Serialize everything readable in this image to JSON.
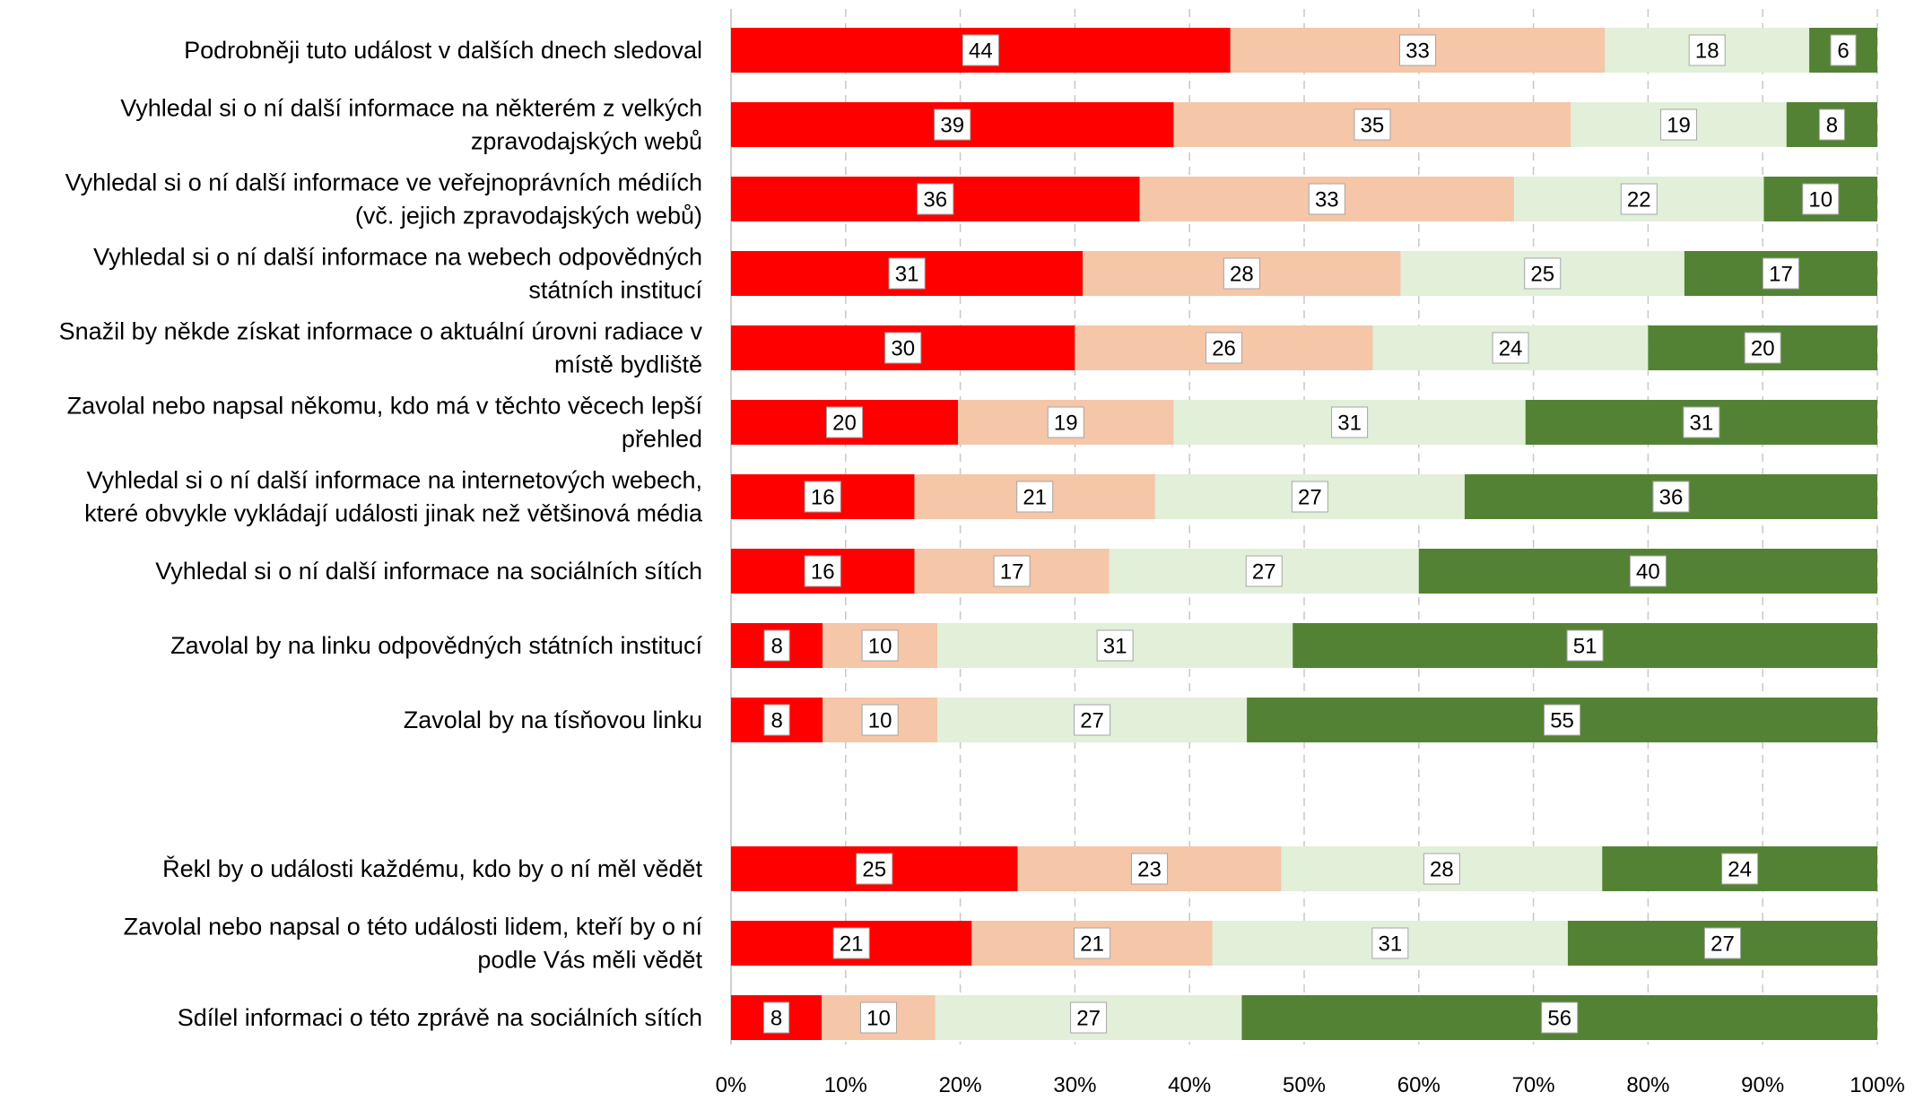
{
  "colors": {
    "series": [
      "#ff0000",
      "#f5c6a8",
      "#e2efd9",
      "#548235"
    ],
    "grid": "#c8c8c8",
    "label_box_border": "#a6a6a6"
  },
  "chart_data": {
    "type": "bar",
    "orientation": "horizontal",
    "stacked": "percent",
    "title": "",
    "xlabel": "",
    "ylabel": "",
    "xlim": [
      0,
      100
    ],
    "x_ticks": [
      "0%",
      "10%",
      "20%",
      "30%",
      "40%",
      "50%",
      "60%",
      "70%",
      "80%",
      "90%",
      "100%"
    ],
    "grid": "vertical dashed",
    "legend": "none",
    "categories": [
      [
        "Podrobněji tuto událost v dalších dnech sledoval"
      ],
      [
        "Vyhledal si o ní další informace na některém z velkých",
        "zpravodajských webů"
      ],
      [
        "Vyhledal si o ní další informace ve veřejnoprávních médiích",
        "(vč. jejich zpravodajských webů)"
      ],
      [
        "Vyhledal si o ní další informace na webech odpovědných",
        "státních institucí"
      ],
      [
        "Snažil by někde získat informace o aktuální úrovni radiace v",
        "místě bydliště"
      ],
      [
        "Zavolal nebo napsal někomu, kdo má v těchto věcech lepší",
        "přehled"
      ],
      [
        "Vyhledal si o ní další informace na internetových webech,",
        "které obvykle vykládají události jinak než většinová média"
      ],
      [
        "Vyhledal si o ní další informace na sociálních sítích"
      ],
      [
        "Zavolal by na linku odpovědných státních institucí"
      ],
      [
        "Zavolal by na tísňovou linku"
      ],
      [
        "Řekl by o události každému, kdo by o ní měl vědět"
      ],
      [
        "Zavolal nebo napsal o této události lidem, kteří by o ní",
        "podle Vás měli vědět"
      ],
      [
        "Sdílel informaci o této zprávě na sociálních sítích"
      ]
    ],
    "group_break_after_index": 9,
    "series": [
      {
        "values": [
          44,
          39,
          36,
          31,
          30,
          20,
          16,
          16,
          8,
          8,
          25,
          21,
          8
        ]
      },
      {
        "values": [
          33,
          35,
          33,
          28,
          26,
          19,
          21,
          17,
          10,
          10,
          23,
          21,
          10
        ]
      },
      {
        "values": [
          18,
          19,
          22,
          25,
          24,
          31,
          27,
          27,
          31,
          27,
          28,
          31,
          27
        ]
      },
      {
        "values": [
          6,
          8,
          10,
          17,
          20,
          31,
          36,
          40,
          51,
          55,
          24,
          27,
          56
        ]
      }
    ]
  }
}
